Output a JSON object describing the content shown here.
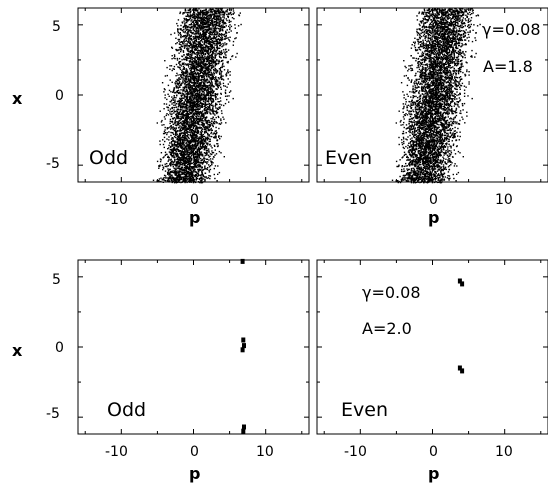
{
  "figure": {
    "xlabel": "p",
    "ylabel": "x",
    "x_ticks": [
      "-10",
      "0",
      "10"
    ],
    "y_ticks": [
      "5",
      "0",
      "-5"
    ]
  },
  "chart_data": [
    {
      "type": "scatter",
      "panel": "top-left",
      "label": "Odd",
      "xlabel": "p",
      "ylabel": "x",
      "xlim": [
        -16,
        16
      ],
      "ylim": [
        -6.2,
        6.2
      ],
      "annotations": [],
      "regions": [
        {
          "kind": "chaotic-band",
          "y_range": [
            -6.2,
            6.2
          ],
          "x_min_at_bottom": -6.5,
          "x_max_at_bottom": 3.8,
          "x_min_at_top": -3.5,
          "x_max_at_top": 7.5
        }
      ]
    },
    {
      "type": "scatter",
      "panel": "top-right",
      "label": "Even",
      "xlabel": "p",
      "ylabel": "",
      "xlim": [
        -16,
        16
      ],
      "ylim": [
        -6.2,
        6.2
      ],
      "annotations": [
        "γ=0.08",
        "A=1.8"
      ],
      "regions": [
        {
          "kind": "chaotic-band",
          "y_range": [
            -6.2,
            6.2
          ],
          "x_min_at_bottom": -6.5,
          "x_max_at_bottom": 3.8,
          "x_min_at_top": -3.5,
          "x_max_at_top": 7.5
        }
      ]
    },
    {
      "type": "scatter",
      "panel": "bottom-left",
      "label": "Odd",
      "xlabel": "p",
      "ylabel": "x",
      "xlim": [
        -16,
        16
      ],
      "ylim": [
        -6.2,
        6.2
      ],
      "annotations": [],
      "points": [
        {
          "x": 6.8,
          "y": 6.1
        },
        {
          "x": 6.9,
          "y": 0.5
        },
        {
          "x": 7.0,
          "y": 0.1
        },
        {
          "x": 6.8,
          "y": -0.2
        },
        {
          "x": 7.0,
          "y": -5.7
        },
        {
          "x": 6.9,
          "y": -6.0
        }
      ]
    },
    {
      "type": "scatter",
      "panel": "bottom-right",
      "label": "Even",
      "xlabel": "p",
      "ylabel": "",
      "xlim": [
        -16,
        16
      ],
      "ylim": [
        -6.2,
        6.2
      ],
      "annotations": [
        "γ=0.08",
        "A=2.0"
      ],
      "points": [
        {
          "x": 3.8,
          "y": 4.7
        },
        {
          "x": 4.1,
          "y": 4.5
        },
        {
          "x": 3.8,
          "y": -1.5
        },
        {
          "x": 4.1,
          "y": -1.7
        }
      ]
    }
  ]
}
